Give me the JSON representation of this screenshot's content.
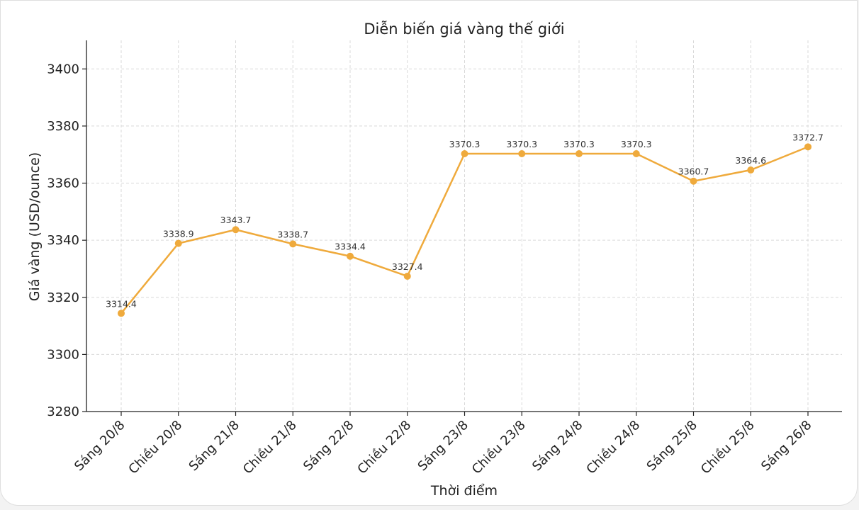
{
  "chart_data": {
    "type": "line",
    "title": "Diễn biến giá vàng thế giới",
    "xlabel": "Thời điểm",
    "ylabel": "Giá vàng (USD/ounce)",
    "ylim": [
      3280,
      3410
    ],
    "yticks": [
      3280,
      3300,
      3320,
      3340,
      3360,
      3380,
      3400
    ],
    "grid": true,
    "line_color": "#efaa3c",
    "categories": [
      "Sáng 20/8",
      "Chiều 20/8",
      "Sáng 21/8",
      "Chiều 21/8",
      "Sáng 22/8",
      "Chiều 22/8",
      "Sáng 23/8",
      "Chiều 23/8",
      "Sáng 24/8",
      "Chiều 24/8",
      "Sáng 25/8",
      "Chiều 25/8",
      "Sáng 26/8"
    ],
    "values": [
      3314.4,
      3338.9,
      3343.7,
      3338.7,
      3334.4,
      3327.4,
      3370.3,
      3370.3,
      3370.3,
      3370.3,
      3360.7,
      3364.6,
      3372.7
    ]
  }
}
